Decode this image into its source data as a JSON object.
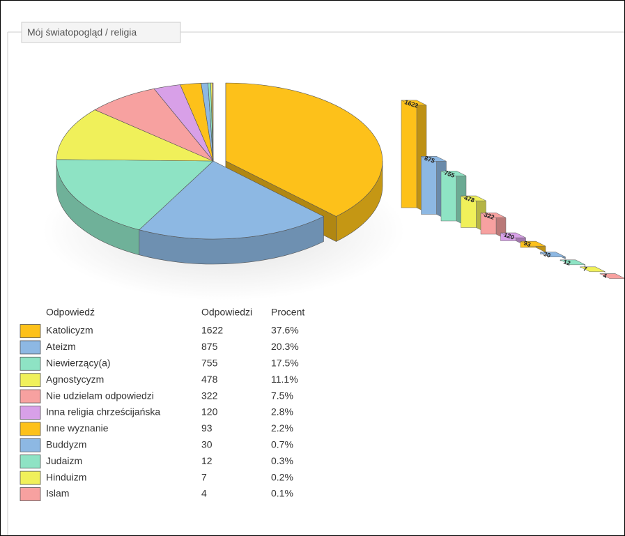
{
  "panel_title": "Mój światopogląd / religia",
  "chart_data": [
    {
      "type": "pie",
      "categories": [
        "Katolicyzm",
        "Ateizm",
        "Niewierzący(a)",
        "Agnostycyzm",
        "Nie udzielam odpowiedzi",
        "Inna religia chrześcijańska",
        "Inne wyznanie",
        "Buddyzm",
        "Judaizm",
        "Hinduizm",
        "Islam"
      ],
      "values": [
        1622,
        875,
        755,
        478,
        322,
        120,
        93,
        30,
        12,
        7,
        4
      ],
      "colors": [
        "#fdc11a",
        "#8db8e3",
        "#8ee3c4",
        "#f0f05a",
        "#f7a1a0",
        "#d8a0e8",
        "#fdc11a",
        "#8db8e3",
        "#8ee3c4",
        "#f0f05a",
        "#f7a1a0"
      ]
    },
    {
      "type": "bar",
      "values": [
        1622,
        875,
        755,
        478,
        322,
        120,
        93,
        30,
        12,
        7,
        4
      ],
      "colors": [
        "#fdc11a",
        "#8db8e3",
        "#8ee3c4",
        "#f0f05a",
        "#f7a1a0",
        "#d8a0e8",
        "#fdc11a",
        "#8db8e3",
        "#8ee3c4",
        "#f0f05a",
        "#f7a1a0"
      ]
    }
  ],
  "table": {
    "headers": [
      "Odpowiedź",
      "Odpowiedzi",
      "Procent"
    ],
    "percents": [
      "37.6%",
      "20.3%",
      "17.5%",
      "11.1%",
      "7.5%",
      "2.8%",
      "2.2%",
      "0.7%",
      "0.3%",
      "0.2%",
      "0.1%"
    ]
  }
}
